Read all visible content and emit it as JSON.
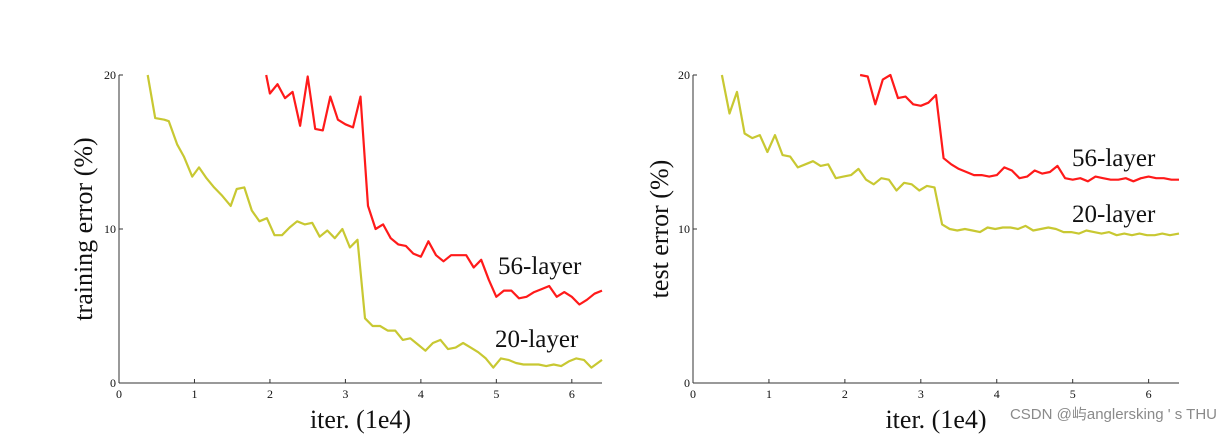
{
  "chart_data": [
    {
      "type": "line",
      "ylabel": "training error (%)",
      "xlabel": "iter. (1e4)",
      "xlim": [
        0,
        6.4
      ],
      "ylim": [
        0,
        20
      ],
      "xticks": [
        "0",
        "1",
        "2",
        "3",
        "4",
        "5",
        "6"
      ],
      "yticks": [
        "0",
        "10",
        "20"
      ],
      "grid": false,
      "series": [
        {
          "name": "56-layer",
          "color": "#ff1a1a",
          "x": [
            1.95,
            2.0,
            2.1,
            2.2,
            2.3,
            2.4,
            2.5,
            2.6,
            2.7,
            2.8,
            2.9,
            3.0,
            3.1,
            3.2,
            3.3,
            3.4,
            3.5,
            3.6,
            3.7,
            3.8,
            3.9,
            4.0,
            4.1,
            4.2,
            4.3,
            4.4,
            4.5,
            4.6,
            4.7,
            4.8,
            4.9,
            5.0,
            5.1,
            5.2,
            5.3,
            5.4,
            5.5,
            5.6,
            5.7,
            5.8,
            5.9,
            6.0,
            6.1,
            6.2,
            6.3,
            6.4
          ],
          "y": [
            20,
            18.8,
            19.4,
            18.5,
            18.9,
            16.7,
            19.9,
            16.5,
            16.4,
            18.6,
            17.1,
            16.8,
            16.6,
            18.6,
            11.5,
            10.0,
            10.3,
            9.4,
            9.0,
            8.9,
            8.4,
            8.2,
            9.2,
            8.3,
            7.9,
            8.3,
            8.3,
            8.3,
            7.5,
            8.0,
            6.7,
            5.6,
            6.0,
            6.0,
            5.5,
            5.6,
            5.9,
            6.1,
            6.3,
            5.6,
            5.9,
            5.6,
            5.1,
            5.4,
            5.8,
            6.0
          ]
        },
        {
          "name": "20-layer",
          "color": "#c8c832",
          "x": [
            0.38,
            0.48,
            0.6,
            0.66,
            0.77,
            0.86,
            0.97,
            1.06,
            1.16,
            1.26,
            1.36,
            1.48,
            1.56,
            1.66,
            1.76,
            1.86,
            1.96,
            2.06,
            2.16,
            2.26,
            2.36,
            2.46,
            2.56,
            2.66,
            2.76,
            2.86,
            2.96,
            3.06,
            3.16,
            3.26,
            3.36,
            3.46,
            3.56,
            3.66,
            3.76,
            3.86,
            3.96,
            4.06,
            4.16,
            4.26,
            4.36,
            4.46,
            4.56,
            4.66,
            4.76,
            4.86,
            4.96,
            5.06,
            5.16,
            5.26,
            5.36,
            5.46,
            5.56,
            5.66,
            5.76,
            5.86,
            5.96,
            6.06,
            6.16,
            6.26,
            6.4
          ],
          "y": [
            20,
            17.2,
            17.1,
            17.0,
            15.5,
            14.7,
            13.4,
            14.0,
            13.3,
            12.7,
            12.2,
            11.5,
            12.6,
            12.7,
            11.2,
            10.5,
            10.7,
            9.6,
            9.6,
            10.1,
            10.5,
            10.3,
            10.4,
            9.5,
            9.9,
            9.4,
            10.0,
            8.8,
            9.3,
            4.2,
            3.7,
            3.7,
            3.4,
            3.4,
            2.8,
            2.9,
            2.5,
            2.1,
            2.6,
            2.8,
            2.2,
            2.3,
            2.6,
            2.3,
            2.0,
            1.6,
            1.0,
            1.6,
            1.5,
            1.3,
            1.2,
            1.2,
            1.2,
            1.1,
            1.2,
            1.1,
            1.4,
            1.6,
            1.5,
            1.0,
            1.5
          ]
        }
      ]
    },
    {
      "type": "line",
      "ylabel": "test error (%)",
      "xlabel": "iter. (1e4)",
      "xlim": [
        0,
        6.4
      ],
      "ylim": [
        0,
        20
      ],
      "xticks": [
        "0",
        "1",
        "2",
        "3",
        "4",
        "5",
        "6"
      ],
      "yticks": [
        "0",
        "10",
        "20"
      ],
      "grid": false,
      "series": [
        {
          "name": "56-layer",
          "color": "#ff1a1a",
          "x": [
            2.2,
            2.3,
            2.4,
            2.5,
            2.6,
            2.7,
            2.8,
            2.9,
            3.0,
            3.1,
            3.2,
            3.3,
            3.4,
            3.5,
            3.6,
            3.7,
            3.8,
            3.9,
            4.0,
            4.1,
            4.2,
            4.3,
            4.4,
            4.5,
            4.6,
            4.7,
            4.8,
            4.9,
            5.0,
            5.1,
            5.2,
            5.3,
            5.4,
            5.5,
            5.6,
            5.7,
            5.8,
            5.9,
            6.0,
            6.1,
            6.2,
            6.3,
            6.4
          ],
          "y": [
            20,
            19.9,
            18.1,
            19.7,
            20.0,
            18.5,
            18.6,
            18.1,
            18.0,
            18.2,
            18.7,
            14.6,
            14.2,
            13.9,
            13.7,
            13.5,
            13.5,
            13.4,
            13.5,
            14.0,
            13.8,
            13.3,
            13.4,
            13.8,
            13.6,
            13.7,
            14.1,
            13.3,
            13.2,
            13.3,
            13.1,
            13.4,
            13.3,
            13.2,
            13.2,
            13.3,
            13.1,
            13.3,
            13.4,
            13.3,
            13.3,
            13.2,
            13.2
          ]
        },
        {
          "name": "20-layer",
          "color": "#c8c832",
          "x": [
            0.38,
            0.48,
            0.58,
            0.68,
            0.78,
            0.88,
            0.98,
            1.08,
            1.18,
            1.28,
            1.38,
            1.48,
            1.58,
            1.68,
            1.78,
            1.88,
            1.98,
            2.08,
            2.18,
            2.28,
            2.38,
            2.48,
            2.58,
            2.68,
            2.78,
            2.88,
            2.98,
            3.08,
            3.18,
            3.28,
            3.38,
            3.48,
            3.58,
            3.68,
            3.78,
            3.88,
            3.98,
            4.08,
            4.18,
            4.28,
            4.38,
            4.48,
            4.58,
            4.68,
            4.78,
            4.88,
            4.98,
            5.08,
            5.18,
            5.28,
            5.38,
            5.48,
            5.58,
            5.68,
            5.78,
            5.88,
            5.98,
            6.08,
            6.18,
            6.28,
            6.4
          ],
          "y": [
            20,
            17.5,
            18.9,
            16.2,
            15.9,
            16.1,
            15.0,
            16.1,
            14.8,
            14.7,
            14.0,
            14.2,
            14.4,
            14.1,
            14.2,
            13.3,
            13.4,
            13.5,
            13.9,
            13.2,
            12.9,
            13.3,
            13.2,
            12.5,
            13.0,
            12.9,
            12.5,
            12.8,
            12.7,
            10.3,
            10.0,
            9.9,
            10.0,
            9.9,
            9.8,
            10.1,
            10.0,
            10.1,
            10.1,
            10.0,
            10.2,
            9.9,
            10.0,
            10.1,
            10.0,
            9.8,
            9.8,
            9.7,
            9.9,
            9.8,
            9.7,
            9.8,
            9.6,
            9.7,
            9.6,
            9.7,
            9.6,
            9.6,
            9.7,
            9.6,
            9.7
          ]
        }
      ]
    }
  ],
  "watermark": "CSDN @屿anglersking ' s THU"
}
